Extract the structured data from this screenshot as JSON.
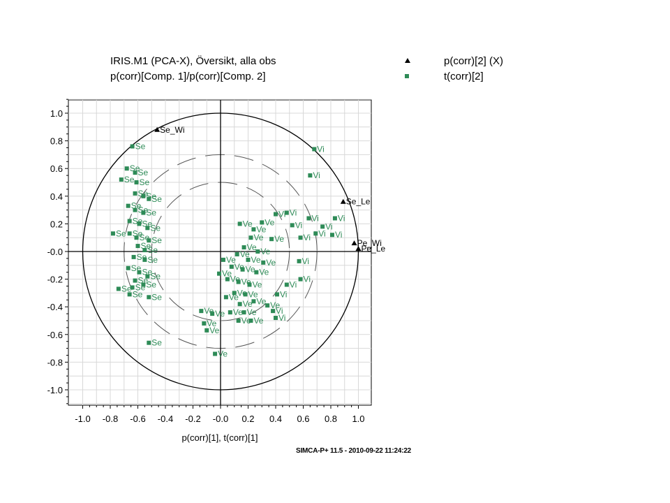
{
  "chart_data": {
    "type": "scatter",
    "title": "IRIS.M1 (PCA-X), Översikt, alla obs",
    "subtitle": "p(corr)[Comp. 1]/p(corr)[Comp. 2]",
    "xlabel": "p(corr)[1], t(corr)[1]",
    "ylabel": "",
    "xlim": [
      -1.0,
      1.05
    ],
    "ylim": [
      -1.1,
      1.1
    ],
    "x_ticks": [
      "-1.0",
      "-0.8",
      "-0.6",
      "-0.4",
      "-0.2",
      "-0.0",
      "0.2",
      "0.4",
      "0.6",
      "0.8",
      "1.0"
    ],
    "y_ticks": [
      "1.0",
      "0.8",
      "0.6",
      "0.4",
      "0.2",
      "-0.0",
      "-0.2",
      "-0.4",
      "-0.6",
      "-0.8",
      "-1.0"
    ],
    "grid": true,
    "legend_position": "top-right",
    "circles": [
      1.0,
      0.7,
      0.5
    ],
    "colors": {
      "loadings": "#000000",
      "scores": "#2e8b57",
      "grid": "#d8d8d8",
      "circle": "#000000"
    },
    "series": [
      {
        "name": "p(corr)[2] (X)",
        "marker": "triangle",
        "points": [
          {
            "x": -0.46,
            "y": 0.88,
            "label": "Se_Wi"
          },
          {
            "x": 0.89,
            "y": 0.36,
            "label": "Se_Le"
          },
          {
            "x": 0.97,
            "y": 0.06,
            "label": "Pe_Wi"
          },
          {
            "x": 1.0,
            "y": 0.02,
            "label": "Pe_Le"
          }
        ]
      },
      {
        "name": "t(corr)[2]",
        "marker": "square",
        "points": [
          {
            "x": -0.64,
            "y": 0.76,
            "label": "Se"
          },
          {
            "x": -0.68,
            "y": 0.6,
            "label": "Se"
          },
          {
            "x": -0.62,
            "y": 0.57,
            "label": "Se"
          },
          {
            "x": -0.72,
            "y": 0.52,
            "label": "Se"
          },
          {
            "x": -0.61,
            "y": 0.5,
            "label": "Se"
          },
          {
            "x": -0.62,
            "y": 0.42,
            "label": "Se"
          },
          {
            "x": -0.56,
            "y": 0.4,
            "label": "Se"
          },
          {
            "x": -0.52,
            "y": 0.38,
            "label": "Se"
          },
          {
            "x": -0.67,
            "y": 0.33,
            "label": "Se"
          },
          {
            "x": -0.62,
            "y": 0.3,
            "label": "Se"
          },
          {
            "x": -0.56,
            "y": 0.28,
            "label": "Se"
          },
          {
            "x": -0.66,
            "y": 0.22,
            "label": "Se"
          },
          {
            "x": -0.59,
            "y": 0.2,
            "label": "Se"
          },
          {
            "x": -0.53,
            "y": 0.17,
            "label": "Se"
          },
          {
            "x": -0.78,
            "y": 0.13,
            "label": "Se"
          },
          {
            "x": -0.66,
            "y": 0.13,
            "label": "Se"
          },
          {
            "x": -0.61,
            "y": 0.1,
            "label": "Se"
          },
          {
            "x": -0.52,
            "y": 0.08,
            "label": "Se"
          },
          {
            "x": -0.6,
            "y": 0.04,
            "label": "Se"
          },
          {
            "x": -0.55,
            "y": 0.01,
            "label": "Se"
          },
          {
            "x": -0.63,
            "y": -0.04,
            "label": "Se"
          },
          {
            "x": -0.55,
            "y": -0.06,
            "label": "Se"
          },
          {
            "x": -0.67,
            "y": -0.12,
            "label": "Se"
          },
          {
            "x": -0.59,
            "y": -0.15,
            "label": "Se"
          },
          {
            "x": -0.53,
            "y": -0.18,
            "label": "Se"
          },
          {
            "x": -0.62,
            "y": -0.21,
            "label": "Se"
          },
          {
            "x": -0.56,
            "y": -0.24,
            "label": "Se"
          },
          {
            "x": -0.64,
            "y": -0.26,
            "label": "Se"
          },
          {
            "x": -0.74,
            "y": -0.27,
            "label": "Se"
          },
          {
            "x": -0.66,
            "y": -0.31,
            "label": "Se"
          },
          {
            "x": -0.52,
            "y": -0.33,
            "label": "Se"
          },
          {
            "x": -0.52,
            "y": -0.66,
            "label": "Se"
          },
          {
            "x": 0.68,
            "y": 0.74,
            "label": "Vi"
          },
          {
            "x": 0.65,
            "y": 0.55,
            "label": "Vi"
          },
          {
            "x": 0.83,
            "y": 0.24,
            "label": "Vi"
          },
          {
            "x": 0.81,
            "y": 0.12,
            "label": "Vi"
          },
          {
            "x": 0.74,
            "y": 0.18,
            "label": "Vi"
          },
          {
            "x": 0.69,
            "y": 0.13,
            "label": "Vi"
          },
          {
            "x": 0.64,
            "y": 0.24,
            "label": "Vi"
          },
          {
            "x": 0.58,
            "y": 0.1,
            "label": "Vi"
          },
          {
            "x": 0.52,
            "y": 0.19,
            "label": "Vi"
          },
          {
            "x": 0.48,
            "y": 0.28,
            "label": "Vi"
          },
          {
            "x": 0.4,
            "y": 0.27,
            "label": "Vi"
          },
          {
            "x": 0.57,
            "y": -0.07,
            "label": "Vi"
          },
          {
            "x": 0.58,
            "y": -0.2,
            "label": "Vi"
          },
          {
            "x": 0.48,
            "y": -0.24,
            "label": "Vi"
          },
          {
            "x": 0.41,
            "y": -0.31,
            "label": "Vi"
          },
          {
            "x": 0.38,
            "y": -0.43,
            "label": "Vi"
          },
          {
            "x": 0.4,
            "y": -0.48,
            "label": "Vi"
          },
          {
            "x": 0.14,
            "y": 0.2,
            "label": "Ve"
          },
          {
            "x": 0.24,
            "y": 0.16,
            "label": "Ve"
          },
          {
            "x": 0.3,
            "y": 0.21,
            "label": "Ve"
          },
          {
            "x": 0.22,
            "y": 0.1,
            "label": "Ve"
          },
          {
            "x": 0.37,
            "y": 0.09,
            "label": "Ve"
          },
          {
            "x": 0.17,
            "y": 0.03,
            "label": "Ve"
          },
          {
            "x": 0.27,
            "y": 0.0,
            "label": "Ve"
          },
          {
            "x": 0.12,
            "y": -0.02,
            "label": "Ve"
          },
          {
            "x": 0.2,
            "y": -0.06,
            "label": "Ve"
          },
          {
            "x": 0.31,
            "y": -0.08,
            "label": "Ve"
          },
          {
            "x": 0.08,
            "y": -0.11,
            "label": "Ve"
          },
          {
            "x": 0.16,
            "y": -0.13,
            "label": "Ve"
          },
          {
            "x": 0.26,
            "y": -0.15,
            "label": "Ve"
          },
          {
            "x": 0.05,
            "y": -0.2,
            "label": "Ve"
          },
          {
            "x": 0.13,
            "y": -0.22,
            "label": "Ve"
          },
          {
            "x": 0.21,
            "y": -0.24,
            "label": "Ve"
          },
          {
            "x": 0.1,
            "y": -0.3,
            "label": "Ve"
          },
          {
            "x": 0.18,
            "y": -0.31,
            "label": "Ve"
          },
          {
            "x": 0.04,
            "y": -0.33,
            "label": "Ve"
          },
          {
            "x": 0.14,
            "y": -0.38,
            "label": "Ve"
          },
          {
            "x": 0.24,
            "y": -0.36,
            "label": "Ve"
          },
          {
            "x": 0.34,
            "y": -0.39,
            "label": "Ve"
          },
          {
            "x": 0.07,
            "y": -0.44,
            "label": "Ve"
          },
          {
            "x": 0.17,
            "y": -0.44,
            "label": "Ve"
          },
          {
            "x": -0.14,
            "y": -0.43,
            "label": "Ve"
          },
          {
            "x": -0.06,
            "y": -0.45,
            "label": "Ve"
          },
          {
            "x": -0.12,
            "y": -0.52,
            "label": "Ve"
          },
          {
            "x": -0.1,
            "y": -0.57,
            "label": "Ve"
          },
          {
            "x": 0.13,
            "y": -0.5,
            "label": "Ve"
          },
          {
            "x": 0.22,
            "y": -0.5,
            "label": "Ve"
          },
          {
            "x": -0.04,
            "y": -0.74,
            "label": "Ve"
          },
          {
            "x": 0.02,
            "y": -0.06,
            "label": "Ve"
          },
          {
            "x": -0.01,
            "y": -0.16,
            "label": "Ve"
          }
        ]
      }
    ]
  },
  "footer": "SIMCA-P+ 11.5 - 2010-09-22 11:24:22"
}
